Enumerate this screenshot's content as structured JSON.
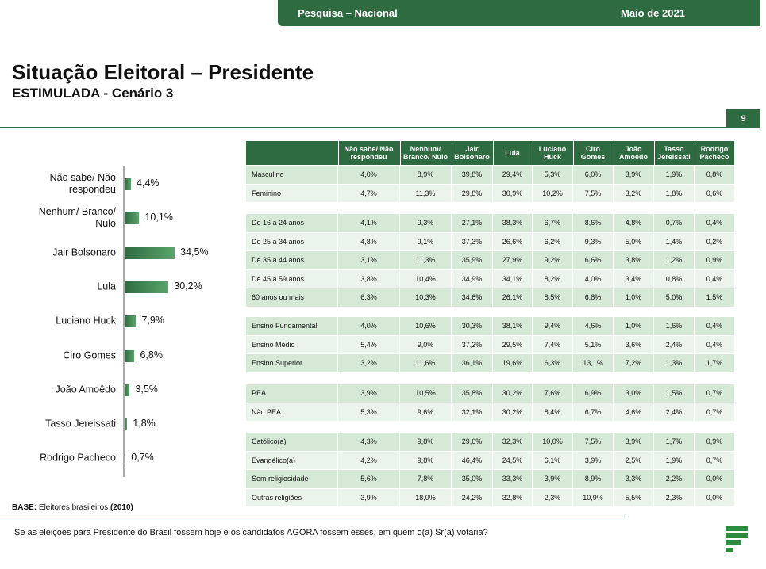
{
  "header": {
    "survey": "Pesquisa – Nacional",
    "date": "Maio de 2021"
  },
  "title": "Situação Eleitoral – Presidente",
  "subtitle": "ESTIMULADA - Cenário 3",
  "page_number": "9",
  "chart_data": {
    "type": "bar",
    "orientation": "horizontal",
    "color": "#2e6b40",
    "categories": [
      "Não sabe/ Não respondeu",
      "Nenhum/ Branco/ Nulo",
      "Jair Bolsonaro",
      "Lula",
      "Luciano Huck",
      "Ciro Gomes",
      "João Amoêdo",
      "Tasso Jereissati",
      "Rodrigo Pacheco"
    ],
    "values": [
      4.4,
      10.1,
      34.5,
      30.2,
      7.9,
      6.8,
      3.5,
      1.8,
      0.7
    ],
    "value_labels": [
      "4,4%",
      "10,1%",
      "34,5%",
      "30,2%",
      "7,9%",
      "6,8%",
      "3,5%",
      "1,8%",
      "0,7%"
    ]
  },
  "table": {
    "columns": [
      "Não sabe/ Não respondeu",
      "Nenhum/ Branco/ Nulo",
      "Jair Bolsonaro",
      "Lula",
      "Luciano Huck",
      "Ciro Gomes",
      "João Amoêdo",
      "Tasso Jereissati",
      "Rodrigo Pacheco"
    ],
    "groups": [
      {
        "rows": [
          {
            "label": "Masculino",
            "cells": [
              "4,0%",
              "8,9%",
              "39,8%",
              "29,4%",
              "5,3%",
              "6,0%",
              "3,9%",
              "1,9%",
              "0,8%"
            ]
          },
          {
            "label": "Feminino",
            "cells": [
              "4,7%",
              "11,3%",
              "29,8%",
              "30,9%",
              "10,2%",
              "7,5%",
              "3,2%",
              "1,8%",
              "0,6%"
            ]
          }
        ]
      },
      {
        "rows": [
          {
            "label": "De 16 a 24 anos",
            "cells": [
              "4,1%",
              "9,3%",
              "27,1%",
              "38,3%",
              "6,7%",
              "8,6%",
              "4,8%",
              "0,7%",
              "0,4%"
            ]
          },
          {
            "label": "De 25 a 34 anos",
            "cells": [
              "4,8%",
              "9,1%",
              "37,3%",
              "26,6%",
              "6,2%",
              "9,3%",
              "5,0%",
              "1,4%",
              "0,2%"
            ]
          },
          {
            "label": "De 35 a 44 anos",
            "cells": [
              "3,1%",
              "11,3%",
              "35,9%",
              "27,9%",
              "9,2%",
              "6,6%",
              "3,8%",
              "1,2%",
              "0,9%"
            ]
          },
          {
            "label": "De 45 a 59 anos",
            "cells": [
              "3,8%",
              "10,4%",
              "34,9%",
              "34,1%",
              "8,2%",
              "4,0%",
              "3,4%",
              "0,8%",
              "0,4%"
            ]
          },
          {
            "label": "60 anos ou mais",
            "cells": [
              "6,3%",
              "10,3%",
              "34,6%",
              "26,1%",
              "8,5%",
              "6,8%",
              "1,0%",
              "5,0%",
              "1,5%"
            ]
          }
        ]
      },
      {
        "rows": [
          {
            "label": "Ensino Fundamental",
            "cells": [
              "4,0%",
              "10,6%",
              "30,3%",
              "38,1%",
              "9,4%",
              "4,6%",
              "1,0%",
              "1,6%",
              "0,4%"
            ]
          },
          {
            "label": "Ensino Médio",
            "cells": [
              "5,4%",
              "9,0%",
              "37,2%",
              "29,5%",
              "7,4%",
              "5,1%",
              "3,6%",
              "2,4%",
              "0,4%"
            ]
          },
          {
            "label": "Ensino Superior",
            "cells": [
              "3,2%",
              "11,6%",
              "36,1%",
              "19,6%",
              "6,3%",
              "13,1%",
              "7,2%",
              "1,3%",
              "1,7%"
            ]
          }
        ]
      },
      {
        "rows": [
          {
            "label": "PEA",
            "cells": [
              "3,9%",
              "10,5%",
              "35,8%",
              "30,2%",
              "7,6%",
              "6,9%",
              "3,0%",
              "1,5%",
              "0,7%"
            ]
          },
          {
            "label": "Não PEA",
            "cells": [
              "5,3%",
              "9,6%",
              "32,1%",
              "30,2%",
              "8,4%",
              "6,7%",
              "4,6%",
              "2,4%",
              "0,7%"
            ]
          }
        ]
      },
      {
        "rows": [
          {
            "label": "Católico(a)",
            "cells": [
              "4,3%",
              "9,8%",
              "29,6%",
              "32,3%",
              "10,0%",
              "7,5%",
              "3,9%",
              "1,7%",
              "0,9%"
            ]
          },
          {
            "label": "Evangélico(a)",
            "cells": [
              "4,2%",
              "9,8%",
              "46,4%",
              "24,5%",
              "6,1%",
              "3,9%",
              "2,5%",
              "1,9%",
              "0,7%"
            ]
          },
          {
            "label": "Sem religiosidade",
            "cells": [
              "5,6%",
              "7,8%",
              "35,0%",
              "33,3%",
              "3,9%",
              "8,9%",
              "3,3%",
              "2,2%",
              "0,0%"
            ]
          },
          {
            "label": "Outras religiões",
            "cells": [
              "3,9%",
              "18,0%",
              "24,2%",
              "32,8%",
              "2,3%",
              "10,9%",
              "5,5%",
              "2,3%",
              "0,0%"
            ]
          }
        ]
      }
    ]
  },
  "base": {
    "label": "BASE:",
    "text": "Eleitores brasileiros",
    "year": "(2010)"
  },
  "question": "Se as eleições para Presidente do Brasil fossem hoje e os candidatos AGORA fossem esses, em quem o(a) Sr(a) votaria?"
}
